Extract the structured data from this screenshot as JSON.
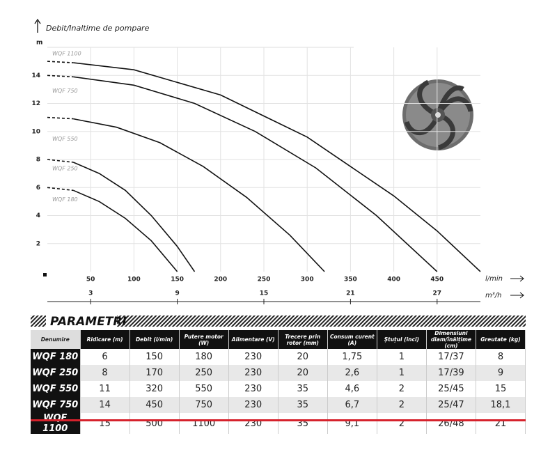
{
  "chart_data": {
    "type": "line",
    "y_label": "Debit/Inaltime de pompare",
    "y_unit": "m",
    "x_unit": "l/min",
    "x2_unit": "m³/h",
    "xlim": [
      0,
      500
    ],
    "xticks": [
      50,
      100,
      150,
      200,
      250,
      300,
      350,
      400,
      450
    ],
    "x2lim": [
      0,
      30
    ],
    "x2ticks": [
      3,
      9,
      15,
      21,
      27
    ],
    "ylim": [
      0,
      16
    ],
    "yticks": [
      2,
      4,
      6,
      8,
      10,
      12,
      14
    ],
    "grid": true,
    "series": [
      {
        "name": "WQF 180",
        "color": "#111111",
        "x": [
          0,
          30,
          60,
          90,
          120,
          150
        ],
        "values": [
          6,
          5.8,
          5.0,
          3.8,
          2.2,
          0
        ]
      },
      {
        "name": "WQF 250",
        "color": "#111111",
        "x": [
          0,
          30,
          60,
          90,
          120,
          150,
          170
        ],
        "values": [
          8,
          7.8,
          7.0,
          5.8,
          4.0,
          1.8,
          0
        ]
      },
      {
        "name": "WQF 550",
        "color": "#111111",
        "x": [
          0,
          30,
          80,
          130,
          180,
          230,
          280,
          320
        ],
        "values": [
          11,
          10.9,
          10.3,
          9.2,
          7.5,
          5.3,
          2.6,
          0
        ]
      },
      {
        "name": "WQF 750",
        "color": "#111111",
        "x": [
          0,
          30,
          100,
          170,
          240,
          310,
          380,
          450
        ],
        "values": [
          14,
          13.9,
          13.3,
          12.0,
          10.0,
          7.4,
          4.0,
          0
        ]
      },
      {
        "name": "WQF 1100",
        "color": "#111111",
        "x": [
          0,
          30,
          100,
          200,
          300,
          400,
          450,
          500
        ],
        "values": [
          15,
          14.9,
          14.4,
          12.6,
          9.6,
          5.4,
          2.9,
          0
        ]
      }
    ]
  },
  "table": {
    "title": "PARAMETRI",
    "headers": [
      "Denumire",
      "Ridicare (m)",
      "Debit (l/min)",
      "Putere motor (W)",
      "Alimentare (V)",
      "Trecere prin rotor (mm)",
      "Consum curent (A)",
      "Ștuțul (inci)",
      "Dimensiuni diam/înălțime (cm)",
      "Greutate (kg)"
    ],
    "rows": [
      [
        "WQF 180",
        "6",
        "150",
        "180",
        "230",
        "20",
        "1,75",
        "1",
        "17/37",
        "8"
      ],
      [
        "WQF 250",
        "8",
        "170",
        "250",
        "230",
        "20",
        "2,6",
        "1",
        "17/39",
        "9"
      ],
      [
        "WQF 550",
        "11",
        "320",
        "550",
        "230",
        "35",
        "4,6",
        "2",
        "25/45",
        "15"
      ],
      [
        "WQF 750",
        "14",
        "450",
        "750",
        "230",
        "35",
        "6,7",
        "2",
        "25/47",
        "18,1"
      ],
      [
        "WQF 1100",
        "15",
        "500",
        "1100",
        "230",
        "35",
        "9,1",
        "2",
        "26/48",
        "21"
      ]
    ]
  }
}
